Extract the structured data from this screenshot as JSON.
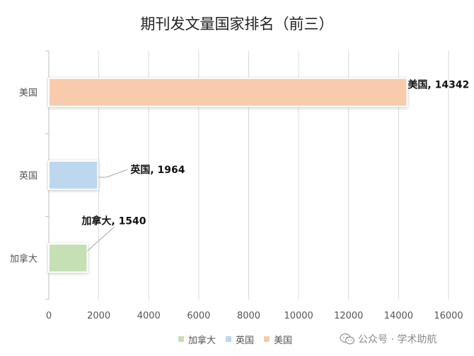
{
  "chart_data": {
    "type": "bar",
    "orientation": "horizontal",
    "title": "期刊发文量国家排名（前三）",
    "categories": [
      "美国",
      "英国",
      "加拿大"
    ],
    "series": [
      {
        "name": "美国",
        "category": "美国",
        "value": 14342,
        "color": "#f8cbad",
        "label": "美国, 14342"
      },
      {
        "name": "英国",
        "category": "英国",
        "value": 1964,
        "color": "#bdd7ee",
        "label": "英国, 1964"
      },
      {
        "name": "加拿大",
        "category": "加拿大",
        "value": 1540,
        "color": "#c5e0b4",
        "label": "加拿大, 1540"
      }
    ],
    "xlim": [
      0,
      16000
    ],
    "xticks": [
      0,
      2000,
      4000,
      6000,
      8000,
      10000,
      12000,
      14000,
      16000
    ],
    "grid": true,
    "legend_position": "bottom",
    "legend": [
      {
        "label": "加拿大",
        "color": "#c5e0b4"
      },
      {
        "label": "英国",
        "color": "#bdd7ee"
      },
      {
        "label": "美国",
        "color": "#f8cbad"
      }
    ]
  },
  "watermark": {
    "icon": "wechat-icon",
    "text": "公众号 · 学术助航"
  }
}
